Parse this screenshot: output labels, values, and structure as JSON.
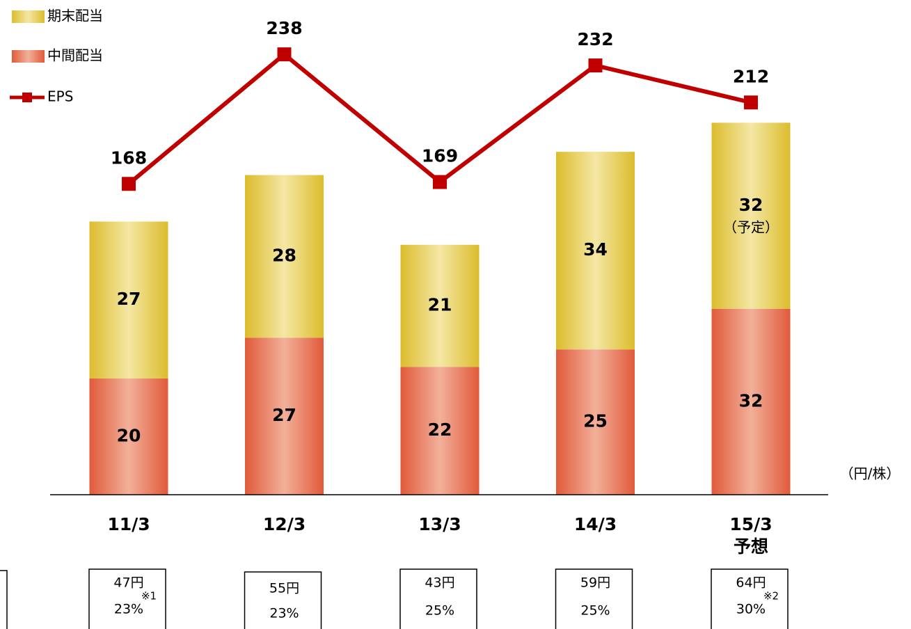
{
  "chart_data": {
    "type": "bar",
    "stacked": true,
    "categories": [
      "11/3",
      "12/3",
      "13/3",
      "14/3",
      "15/3"
    ],
    "category_notes": [
      null,
      null,
      null,
      null,
      "予想"
    ],
    "unit_label": "（円/株）",
    "ylim": [
      0,
      85
    ],
    "y2lim": [
      0,
      267
    ],
    "legend": "top-left",
    "series": [
      {
        "name": "中間配当",
        "color": "#e05a3a",
        "highlight": "#f2b09a",
        "values": [
          20,
          27,
          22,
          25,
          32
        ]
      },
      {
        "name": "期末配当",
        "color": "#dcbc2c",
        "highlight": "#f4e7a4",
        "values": [
          27,
          28,
          21,
          34,
          32
        ],
        "notes": [
          null,
          null,
          null,
          null,
          "（予定）"
        ]
      },
      {
        "name": "EPS",
        "type": "line",
        "axis": "y2",
        "color": "#c00000",
        "values": [
          168,
          238,
          169,
          232,
          212
        ]
      }
    ],
    "totals": [
      47,
      55,
      43,
      59,
      64
    ],
    "total_labels": [
      "47円",
      "55円",
      "43円",
      "59円",
      "64円"
    ],
    "payout_ratio": [
      23,
      23,
      25,
      25,
      30
    ],
    "payout_labels": [
      "23%",
      "23%",
      "25%",
      "25%",
      "30%"
    ],
    "footnotes": [
      "※1",
      null,
      null,
      null,
      "※2"
    ]
  }
}
